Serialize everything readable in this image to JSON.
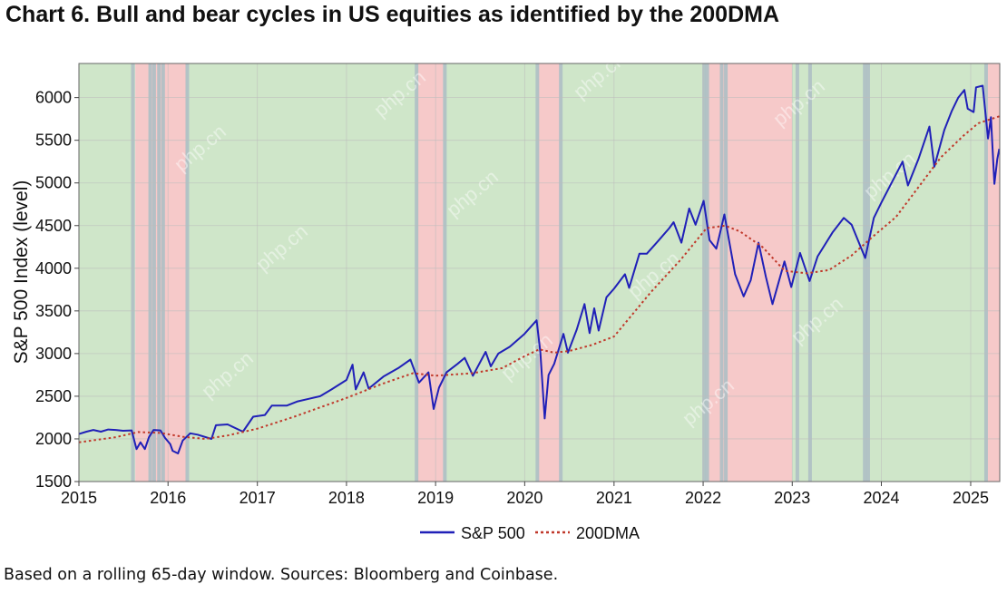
{
  "title": "Chart 6. Bull and bear cycles in US equities as identified by the 200DMA",
  "footnote": "Based on a rolling 65-day window. Sources: Bloomberg and Coinbase.",
  "chart_data": {
    "type": "line",
    "title": "Chart 6. Bull and bear cycles in US equities as identified by the 200DMA",
    "xlabel": "",
    "ylabel": "S&P 500 Index (level)",
    "xlim": [
      "2015-01-01",
      "2025-04-30"
    ],
    "ylim": [
      1500,
      6400
    ],
    "x_ticks": [
      "2015",
      "2016",
      "2017",
      "2018",
      "2019",
      "2020",
      "2021",
      "2022",
      "2023",
      "2024",
      "2025"
    ],
    "y_ticks": [
      1500,
      2000,
      2500,
      3000,
      3500,
      4000,
      4500,
      5000,
      5500,
      6000
    ],
    "grid": true,
    "legend": "bottom-center",
    "colors": {
      "sp500": "#2020b8",
      "dma200": "#c0392b",
      "bull": "#cfe6c9",
      "bear": "#f6c9c9",
      "transition": "#aebfc4"
    },
    "regimes": [
      {
        "regime": "bull",
        "start": "2015-01-01",
        "end": "2015-08-20"
      },
      {
        "regime": "bear",
        "start": "2015-08-20",
        "end": "2016-03-15"
      },
      {
        "regime": "bull",
        "start": "2016-03-15",
        "end": "2018-10-20"
      },
      {
        "regime": "bear",
        "start": "2018-10-20",
        "end": "2019-02-01"
      },
      {
        "regime": "bull",
        "start": "2019-02-01",
        "end": "2020-02-25"
      },
      {
        "regime": "bear",
        "start": "2020-02-25",
        "end": "2020-05-25"
      },
      {
        "regime": "bull",
        "start": "2020-05-25",
        "end": "2022-01-20"
      },
      {
        "regime": "bear",
        "start": "2022-01-20",
        "end": "2023-01-01"
      },
      {
        "regime": "bull",
        "start": "2023-01-01",
        "end": "2025-03-10"
      },
      {
        "regime": "bear",
        "start": "2025-03-10",
        "end": "2025-04-30"
      }
    ],
    "transitions": [
      "2015-08-10",
      "2015-10-20",
      "2015-11-05",
      "2015-11-25",
      "2015-12-12",
      "2016-03-20",
      "2018-10-15",
      "2019-02-08",
      "2020-02-22",
      "2020-05-28",
      "2022-01-05",
      "2022-01-18",
      "2022-03-18",
      "2022-04-04",
      "2023-01-22",
      "2023-03-15",
      "2023-10-25",
      "2023-11-08",
      "2025-03-05"
    ],
    "series": [
      {
        "name": "S&P 500",
        "style": "solid",
        "points": [
          [
            "2015-01-01",
            2058
          ],
          [
            "2015-02-01",
            2085
          ],
          [
            "2015-03-01",
            2105
          ],
          [
            "2015-04-01",
            2085
          ],
          [
            "2015-05-01",
            2110
          ],
          [
            "2015-06-01",
            2105
          ],
          [
            "2015-07-01",
            2095
          ],
          [
            "2015-08-05",
            2100
          ],
          [
            "2015-08-25",
            1880
          ],
          [
            "2015-09-10",
            1960
          ],
          [
            "2015-09-28",
            1880
          ],
          [
            "2015-10-15",
            2020
          ],
          [
            "2015-11-03",
            2105
          ],
          [
            "2015-12-01",
            2100
          ],
          [
            "2015-12-20",
            2010
          ],
          [
            "2016-01-10",
            1940
          ],
          [
            "2016-01-20",
            1860
          ],
          [
            "2016-02-11",
            1830
          ],
          [
            "2016-03-01",
            1980
          ],
          [
            "2016-04-01",
            2065
          ],
          [
            "2016-05-01",
            2050
          ],
          [
            "2016-06-27",
            2000
          ],
          [
            "2016-07-15",
            2160
          ],
          [
            "2016-09-01",
            2170
          ],
          [
            "2016-11-03",
            2085
          ],
          [
            "2016-12-15",
            2260
          ],
          [
            "2017-02-01",
            2280
          ],
          [
            "2017-03-01",
            2390
          ],
          [
            "2017-05-01",
            2390
          ],
          [
            "2017-06-15",
            2440
          ],
          [
            "2017-08-01",
            2470
          ],
          [
            "2017-09-15",
            2500
          ],
          [
            "2017-11-01",
            2580
          ],
          [
            "2018-01-01",
            2690
          ],
          [
            "2018-01-26",
            2870
          ],
          [
            "2018-02-08",
            2580
          ],
          [
            "2018-03-12",
            2780
          ],
          [
            "2018-04-02",
            2590
          ],
          [
            "2018-06-01",
            2730
          ],
          [
            "2018-08-01",
            2830
          ],
          [
            "2018-09-20",
            2930
          ],
          [
            "2018-10-25",
            2660
          ],
          [
            "2018-12-03",
            2780
          ],
          [
            "2018-12-24",
            2350
          ],
          [
            "2019-01-15",
            2600
          ],
          [
            "2019-02-15",
            2780
          ],
          [
            "2019-04-01",
            2880
          ],
          [
            "2019-04-30",
            2950
          ],
          [
            "2019-06-03",
            2740
          ],
          [
            "2019-07-25",
            3020
          ],
          [
            "2019-08-15",
            2850
          ],
          [
            "2019-09-15",
            3000
          ],
          [
            "2019-11-01",
            3080
          ],
          [
            "2019-12-31",
            3230
          ],
          [
            "2020-02-19",
            3390
          ],
          [
            "2020-03-05",
            3020
          ],
          [
            "2020-03-23",
            2240
          ],
          [
            "2020-04-08",
            2750
          ],
          [
            "2020-05-01",
            2880
          ],
          [
            "2020-06-08",
            3230
          ],
          [
            "2020-06-26",
            3010
          ],
          [
            "2020-08-01",
            3280
          ],
          [
            "2020-09-02",
            3580
          ],
          [
            "2020-09-23",
            3240
          ],
          [
            "2020-10-12",
            3530
          ],
          [
            "2020-10-30",
            3270
          ],
          [
            "2020-12-01",
            3660
          ],
          [
            "2021-01-01",
            3760
          ],
          [
            "2021-02-15",
            3930
          ],
          [
            "2021-03-04",
            3770
          ],
          [
            "2021-04-15",
            4170
          ],
          [
            "2021-05-15",
            4170
          ],
          [
            "2021-07-01",
            4320
          ],
          [
            "2021-08-15",
            4470
          ],
          [
            "2021-09-02",
            4540
          ],
          [
            "2021-10-04",
            4300
          ],
          [
            "2021-11-05",
            4700
          ],
          [
            "2021-12-01",
            4510
          ],
          [
            "2022-01-03",
            4790
          ],
          [
            "2022-01-27",
            4330
          ],
          [
            "2022-02-24",
            4230
          ],
          [
            "2022-03-29",
            4630
          ],
          [
            "2022-05-12",
            3930
          ],
          [
            "2022-06-16",
            3670
          ],
          [
            "2022-07-15",
            3860
          ],
          [
            "2022-08-16",
            4300
          ],
          [
            "2022-09-15",
            3900
          ],
          [
            "2022-10-12",
            3580
          ],
          [
            "2022-11-30",
            4080
          ],
          [
            "2022-12-28",
            3780
          ],
          [
            "2023-02-02",
            4180
          ],
          [
            "2023-03-13",
            3850
          ],
          [
            "2023-04-15",
            4140
          ],
          [
            "2023-06-15",
            4420
          ],
          [
            "2023-07-31",
            4590
          ],
          [
            "2023-09-01",
            4510
          ],
          [
            "2023-10-27",
            4120
          ],
          [
            "2023-12-01",
            4590
          ],
          [
            "2024-01-01",
            4770
          ],
          [
            "2024-03-28",
            5250
          ],
          [
            "2024-04-19",
            4970
          ],
          [
            "2024-06-01",
            5280
          ],
          [
            "2024-07-16",
            5660
          ],
          [
            "2024-08-05",
            5190
          ],
          [
            "2024-09-15",
            5620
          ],
          [
            "2024-10-15",
            5840
          ],
          [
            "2024-11-11",
            6000
          ],
          [
            "2024-12-06",
            6090
          ],
          [
            "2024-12-20",
            5870
          ],
          [
            "2025-01-13",
            5830
          ],
          [
            "2025-01-23",
            6120
          ],
          [
            "2025-02-19",
            6140
          ],
          [
            "2025-03-13",
            5520
          ],
          [
            "2025-03-25",
            5770
          ],
          [
            "2025-04-08",
            4990
          ],
          [
            "2025-04-20",
            5280
          ],
          [
            "2025-04-28",
            5400
          ]
        ]
      },
      {
        "name": "200DMA",
        "style": "dotted",
        "points": [
          [
            "2015-01-01",
            1960
          ],
          [
            "2015-06-01",
            2020
          ],
          [
            "2015-09-01",
            2080
          ],
          [
            "2015-12-01",
            2070
          ],
          [
            "2016-03-01",
            2025
          ],
          [
            "2016-06-01",
            2000
          ],
          [
            "2016-09-01",
            2040
          ],
          [
            "2017-01-01",
            2120
          ],
          [
            "2017-06-01",
            2260
          ],
          [
            "2018-01-01",
            2480
          ],
          [
            "2018-06-01",
            2650
          ],
          [
            "2018-10-01",
            2770
          ],
          [
            "2019-01-01",
            2740
          ],
          [
            "2019-06-01",
            2770
          ],
          [
            "2019-10-01",
            2830
          ],
          [
            "2020-01-01",
            2970
          ],
          [
            "2020-03-01",
            3050
          ],
          [
            "2020-05-01",
            3010
          ],
          [
            "2020-07-01",
            3030
          ],
          [
            "2020-10-01",
            3100
          ],
          [
            "2021-01-01",
            3200
          ],
          [
            "2021-06-01",
            3720
          ],
          [
            "2021-10-01",
            4100
          ],
          [
            "2022-01-15",
            4470
          ],
          [
            "2022-04-01",
            4500
          ],
          [
            "2022-06-01",
            4430
          ],
          [
            "2022-09-01",
            4250
          ],
          [
            "2022-12-01",
            3970
          ],
          [
            "2023-03-01",
            3940
          ],
          [
            "2023-06-01",
            3980
          ],
          [
            "2023-09-01",
            4150
          ],
          [
            "2023-12-01",
            4380
          ],
          [
            "2024-03-01",
            4600
          ],
          [
            "2024-06-01",
            4950
          ],
          [
            "2024-09-01",
            5300
          ],
          [
            "2024-12-01",
            5550
          ],
          [
            "2025-02-01",
            5700
          ],
          [
            "2025-04-28",
            5780
          ]
        ]
      }
    ]
  },
  "watermark": "php.cn"
}
